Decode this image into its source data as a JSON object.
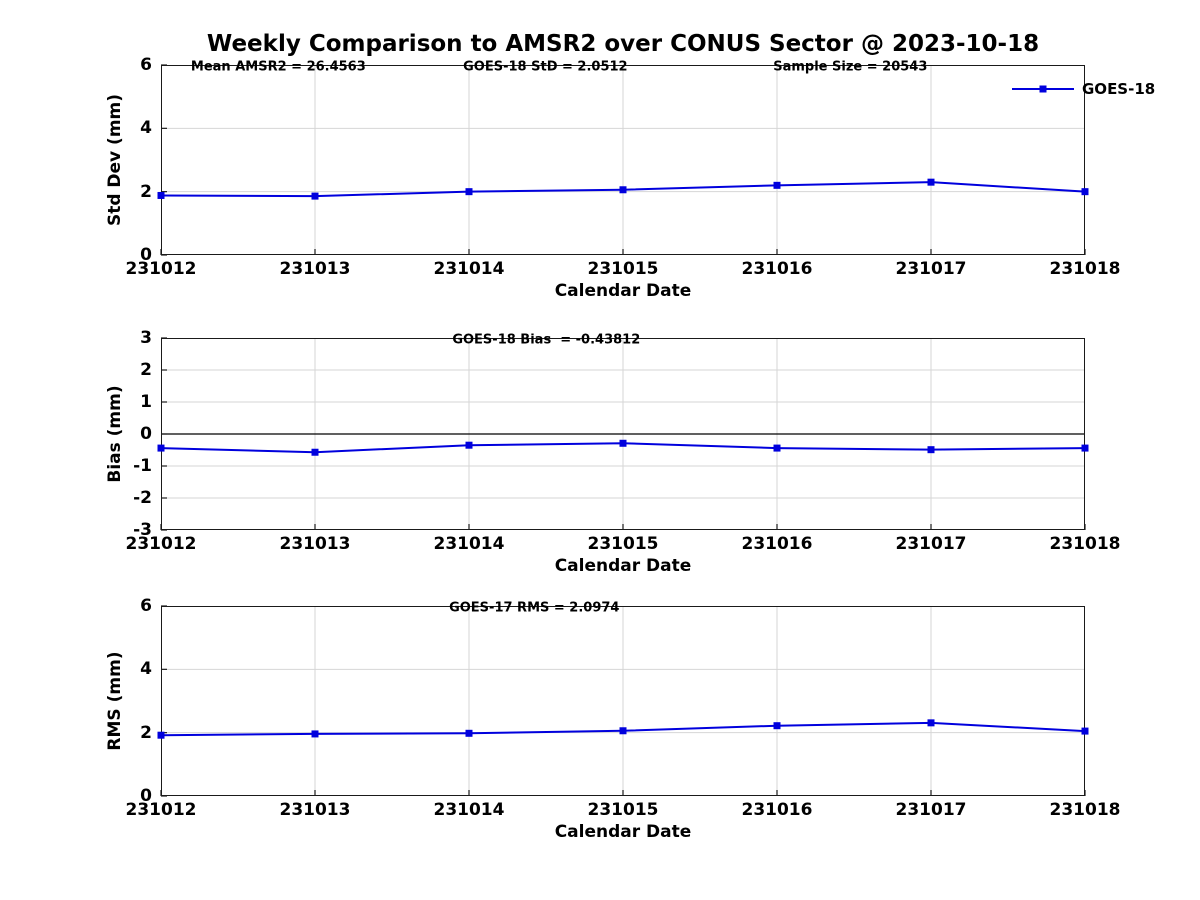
{
  "title": "Weekly Comparison to AMSR2 over CONUS Sector @ 2023-10-18",
  "style": {
    "line_color": "#0000dd",
    "grid_color": "#d6d6d6",
    "axis_color": "#1a1a1a",
    "zero_line_color": "#000000"
  },
  "chart_data": [
    {
      "type": "line",
      "title": "Weekly Comparison to AMSR2 over CONUS Sector @ 2023-10-18",
      "ylabel": "Std Dev (mm)",
      "xlabel": "Calendar Date",
      "categories": [
        "231012",
        "231013",
        "231014",
        "231015",
        "231016",
        "231017",
        "231018"
      ],
      "series": [
        {
          "name": "GOES-18",
          "values": [
            1.88,
            1.86,
            2.0,
            2.06,
            2.2,
            2.3,
            2.0
          ]
        }
      ],
      "ylim": [
        0,
        6
      ],
      "yticks": [
        0,
        2,
        4,
        6
      ],
      "grid": true,
      "zero_line": false,
      "legend": {
        "label": "GOES-18",
        "position": "northeast"
      },
      "annotations": [
        {
          "text": "Mean AMSR2 = 26.4563"
        },
        {
          "text": "GOES-18 StD = 2.0512"
        },
        {
          "text": "Sample Size = 20543"
        }
      ]
    },
    {
      "type": "line",
      "ylabel": "Bias (mm)",
      "xlabel": "Calendar Date",
      "categories": [
        "231012",
        "231013",
        "231014",
        "231015",
        "231016",
        "231017",
        "231018"
      ],
      "series": [
        {
          "name": "GOES-18",
          "values": [
            -0.44,
            -0.57,
            -0.35,
            -0.29,
            -0.44,
            -0.49,
            -0.44
          ]
        }
      ],
      "ylim": [
        -3,
        3
      ],
      "yticks": [
        -3,
        -2,
        -1,
        0,
        1,
        2,
        3
      ],
      "grid": true,
      "zero_line": true,
      "annotations": [
        {
          "text": "GOES-18 Bias  = -0.43812"
        }
      ]
    },
    {
      "type": "line",
      "ylabel": "RMS (mm)",
      "xlabel": "Calendar Date",
      "categories": [
        "231012",
        "231013",
        "231014",
        "231015",
        "231016",
        "231017",
        "231018"
      ],
      "series": [
        {
          "name": "GOES-17",
          "values": [
            1.92,
            1.96,
            1.98,
            2.06,
            2.22,
            2.31,
            2.05
          ]
        }
      ],
      "ylim": [
        0,
        6
      ],
      "yticks": [
        0,
        2,
        4,
        6
      ],
      "grid": true,
      "zero_line": false,
      "annotations": [
        {
          "text": "GOES-17 RMS = 2.0974"
        }
      ]
    }
  ]
}
